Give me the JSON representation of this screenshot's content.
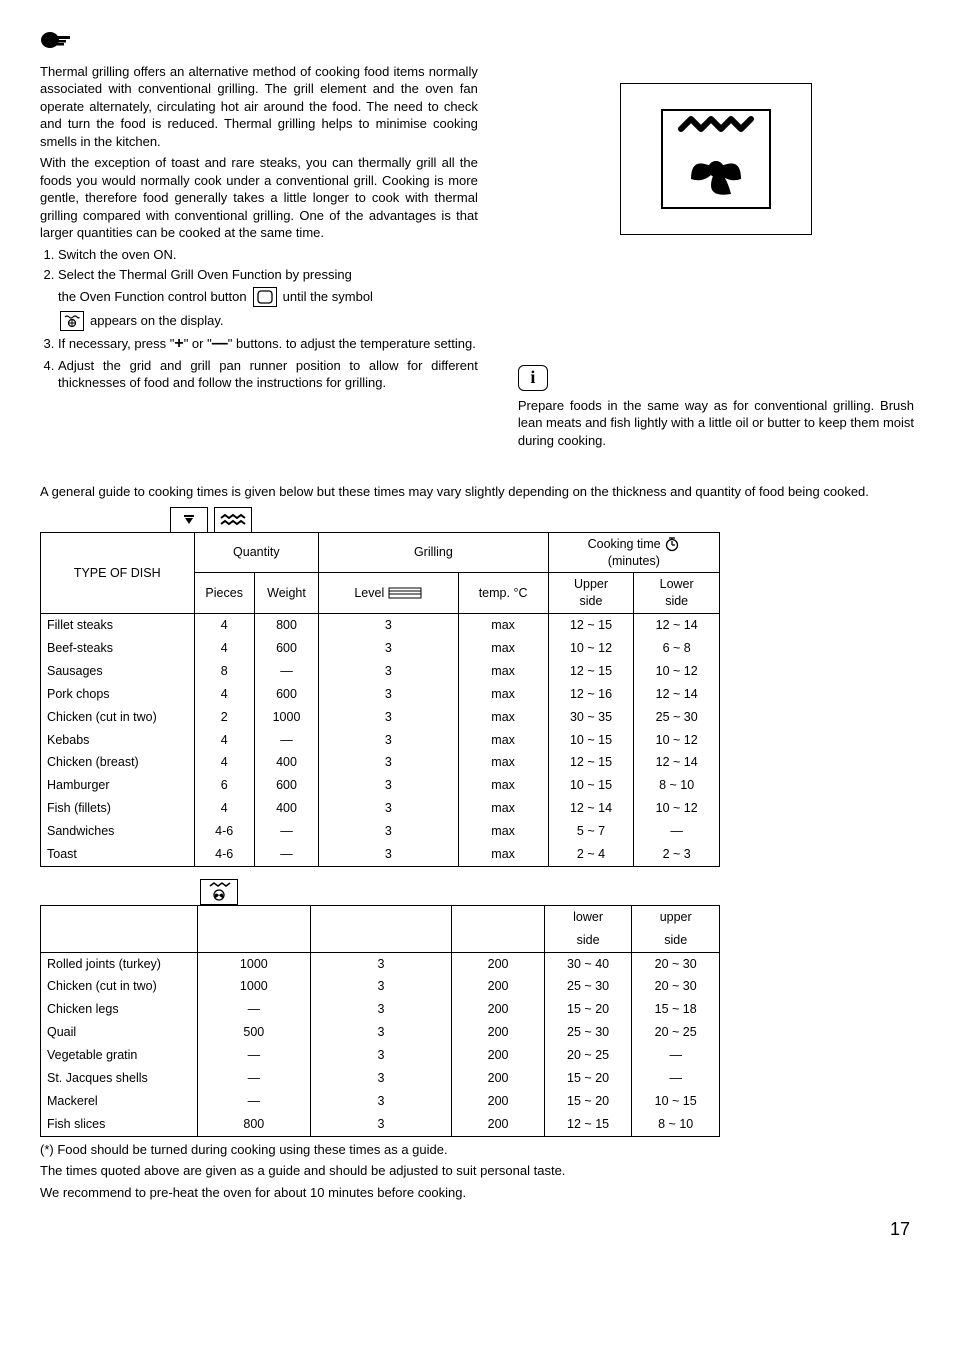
{
  "intro": {
    "p1": "Thermal grilling offers an alternative method of cooking food items normally associated with conventional grilling. The grill element and the oven fan operate alternately, circulating hot air around the food. The need to check and turn the food is reduced. Thermal grilling helps to minimise cooking smells in the kitchen.",
    "p2": "With the exception of toast and rare steaks, you can thermally grill all the foods you would normally cook under a conventional grill. Cooking is more gentle, therefore food generally takes a little longer to cook with thermal grilling compared with conventional grilling. One of the advantages is that larger quantities can be cooked at the same time."
  },
  "steps": {
    "s1": "Switch the oven ON.",
    "s2a": "Select the Thermal Grill Oven Function by pressing",
    "s2b_prefix": "the Oven Function control button",
    "s2b_suffix": "until the symbol",
    "s2c": "appears on the display.",
    "s3a": "If necessary, press \"",
    "s3b": "\" or \"",
    "s3c": "\" buttons. to adjust the temperature setting.",
    "s4": "Adjust the grid and grill pan runner position to allow for different thicknesses of food and follow the instructions for grilling."
  },
  "tip": "Prepare foods in the same way as for conventional grilling. Brush lean meats and fish lightly with a little oil or butter to keep them moist during cooking.",
  "guide": "A general guide to cooking times is given below but these times may vary slightly depending on the thickness and quantity of food being cooked.",
  "t1": {
    "type_label": "TYPE OF DISH",
    "quantity": "Quantity",
    "grilling": "Grilling",
    "cooking_time": "Cooking time",
    "minutes": "(minutes)",
    "pieces": "Pieces",
    "weight": "Weight",
    "level": "Level",
    "temp": "temp.",
    "temp_unit": "°C",
    "upper": "Upper",
    "lower": "Lower",
    "side": "side",
    "rows": [
      {
        "dish": "Fillet steaks",
        "pieces": "4",
        "weight": "800",
        "level": "3",
        "temp": "max",
        "up": "12 ~ 15",
        "lo": "12 ~ 14"
      },
      {
        "dish": "Beef-steaks",
        "pieces": "4",
        "weight": "600",
        "level": "3",
        "temp": "max",
        "up": "10 ~ 12",
        "lo": "6 ~ 8"
      },
      {
        "dish": "Sausages",
        "pieces": "8",
        "weight": "—",
        "level": "3",
        "temp": "max",
        "up": "12 ~ 15",
        "lo": "10 ~ 12"
      },
      {
        "dish": "Pork chops",
        "pieces": "4",
        "weight": "600",
        "level": "3",
        "temp": "max",
        "up": "12 ~ 16",
        "lo": "12 ~ 14"
      },
      {
        "dish": "Chicken (cut in two)",
        "pieces": "2",
        "weight": "1000",
        "level": "3",
        "temp": "max",
        "up": "30 ~ 35",
        "lo": "25 ~ 30"
      },
      {
        "dish": "Kebabs",
        "pieces": "4",
        "weight": "—",
        "level": "3",
        "temp": "max",
        "up": "10 ~ 15",
        "lo": "10 ~ 12"
      },
      {
        "dish": "Chicken (breast)",
        "pieces": "4",
        "weight": "400",
        "level": "3",
        "temp": "max",
        "up": "12 ~ 15",
        "lo": "12 ~ 14"
      },
      {
        "dish": "Hamburger",
        "pieces": "6",
        "weight": "600",
        "level": "3",
        "temp": "max",
        "up": "10 ~ 15",
        "lo": "8 ~ 10"
      },
      {
        "dish": "Fish (fillets)",
        "pieces": "4",
        "weight": "400",
        "level": "3",
        "temp": "max",
        "up": "12 ~ 14",
        "lo": "10 ~ 12"
      },
      {
        "dish": "Sandwiches",
        "pieces": "4-6",
        "weight": "—",
        "level": "3",
        "temp": "max",
        "up": "5 ~ 7",
        "lo": "—"
      },
      {
        "dish": "Toast",
        "pieces": "4-6",
        "weight": "—",
        "level": "3",
        "temp": "max",
        "up": "2 ~ 4",
        "lo": "2 ~ 3"
      }
    ]
  },
  "t2": {
    "lower": "lower",
    "upper": "upper",
    "side": "side",
    "rows": [
      {
        "dish": "Rolled joints (turkey)",
        "weight": "1000",
        "level": "3",
        "temp": "200",
        "lo": "30 ~ 40",
        "up": "20 ~ 30"
      },
      {
        "dish": "Chicken (cut in two)",
        "weight": "1000",
        "level": "3",
        "temp": "200",
        "lo": "25 ~ 30",
        "up": "20 ~ 30"
      },
      {
        "dish": "Chicken legs",
        "weight": "—",
        "level": "3",
        "temp": "200",
        "lo": "15 ~ 20",
        "up": "15 ~ 18"
      },
      {
        "dish": "Quail",
        "weight": "500",
        "level": "3",
        "temp": "200",
        "lo": "25 ~ 30",
        "up": "20 ~ 25"
      },
      {
        "dish": "Vegetable gratin",
        "weight": "—",
        "level": "3",
        "temp": "200",
        "lo": "20 ~ 25",
        "up": "—"
      },
      {
        "dish": "St. Jacques shells",
        "weight": "—",
        "level": "3",
        "temp": "200",
        "lo": "15 ~ 20",
        "up": "—"
      },
      {
        "dish": "Mackerel",
        "weight": "—",
        "level": "3",
        "temp": "200",
        "lo": "15 ~ 20",
        "up": "10 ~ 15"
      },
      {
        "dish": "Fish slices",
        "weight": "800",
        "level": "3",
        "temp": "200",
        "lo": "12 ~ 15",
        "up": "8 ~ 10"
      }
    ]
  },
  "footer": {
    "l1": "(*) Food should be turned during cooking using these times as a guide.",
    "l2": "The times quoted above are given as a guide and should be adjusted to suit personal taste.",
    "l3": "We recommend to pre-heat the oven for about 10 minutes before cooking."
  },
  "pagenum": "17"
}
